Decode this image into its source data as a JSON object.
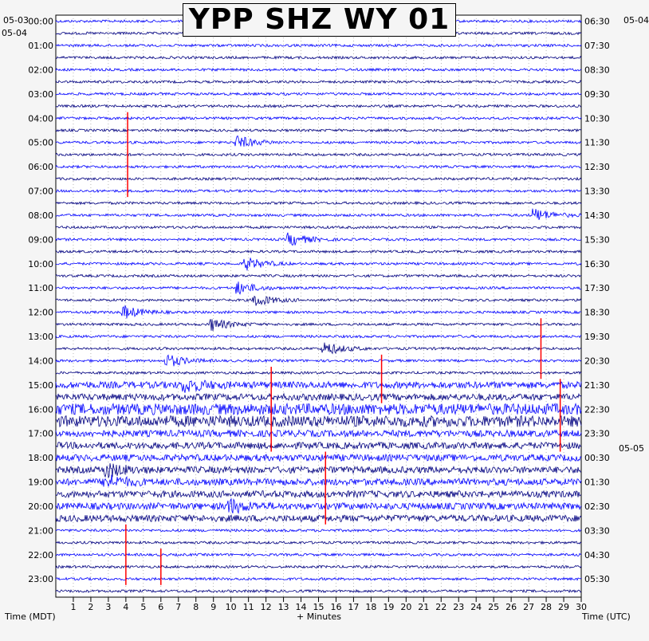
{
  "chart_data": {
    "type": "line",
    "title": "YPP SHZ WY 01",
    "station": "YPP",
    "channel": "SHZ",
    "network": "WY",
    "location": "01",
    "xlabel": "+ Minutes",
    "ylabel_left": "Time (MDT)",
    "ylabel_right": "Time (UTC)",
    "xlim": [
      0,
      30
    ],
    "x_ticks": [
      1,
      2,
      3,
      4,
      5,
      6,
      7,
      8,
      9,
      10,
      11,
      12,
      13,
      14,
      15,
      16,
      17,
      18,
      19,
      20,
      21,
      22,
      23,
      24,
      25,
      26,
      27,
      28,
      29,
      30
    ],
    "x_tick_labels": [
      "1",
      "2",
      "3",
      "4",
      "5",
      "6",
      "7",
      "8",
      "9",
      "10",
      "11",
      "12",
      "13",
      "14",
      "15",
      "16",
      "17",
      "18",
      "19",
      "20",
      "21",
      "22",
      "23",
      "24",
      "25",
      "26",
      "27",
      "28",
      "29",
      "30"
    ],
    "row_minutes": 30,
    "row_count": 48,
    "left_date_labels": [
      "05-03",
      "05-04"
    ],
    "right_date_labels": [
      "05-04",
      "05-05"
    ],
    "left_hour_labels": [
      "00:00",
      "01:00",
      "02:00",
      "03:00",
      "04:00",
      "05:00",
      "06:00",
      "07:00",
      "08:00",
      "09:00",
      "10:00",
      "11:00",
      "12:00",
      "13:00",
      "14:00",
      "15:00",
      "16:00",
      "17:00",
      "18:00",
      "19:00",
      "20:00",
      "21:00",
      "22:00",
      "23:00"
    ],
    "right_hour_labels": [
      "06:30",
      "07:30",
      "08:30",
      "09:30",
      "10:30",
      "11:30",
      "12:30",
      "13:30",
      "14:30",
      "15:30",
      "16:30",
      "17:30",
      "18:30",
      "19:30",
      "20:30",
      "21:30",
      "22:30",
      "23:30",
      "00:30",
      "01:30",
      "02:30",
      "03:30",
      "04:30",
      "05:30"
    ],
    "trace_colors": [
      "#0000ff",
      "#000080"
    ],
    "clip_color": "#ff0000",
    "grid": true,
    "events": [
      {
        "row": 10,
        "minute": 10.5,
        "note": "small event"
      },
      {
        "row": 18,
        "minute": 13.5,
        "note": "small event"
      },
      {
        "row": 20,
        "minute": 11.0,
        "note": "event"
      },
      {
        "row": 22,
        "minute": 10.5,
        "note": "event"
      },
      {
        "row": 23,
        "minute": 11.5,
        "note": "event"
      },
      {
        "row": 24,
        "minute": 4.0,
        "note": "event"
      },
      {
        "row": 25,
        "minute": 9.0,
        "note": "event"
      },
      {
        "row": 27,
        "minute": 15.5,
        "note": "event"
      },
      {
        "row": 28,
        "minute": 6.5,
        "note": "event"
      },
      {
        "row": 30,
        "minute": 7.5,
        "note": "event"
      },
      {
        "row": 37,
        "minute": 3.0,
        "note": "noisy period"
      },
      {
        "row": 38,
        "minute": 3.0,
        "note": "noisy period"
      },
      {
        "row": 40,
        "minute": 10.0,
        "note": "event"
      },
      {
        "row": 16,
        "minute": 27.5,
        "note": "event"
      }
    ]
  }
}
